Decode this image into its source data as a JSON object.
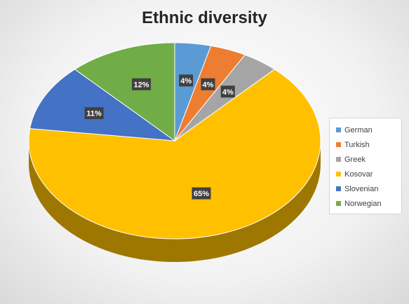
{
  "chart_data": {
    "type": "pie",
    "title": "Ethnic diversity",
    "categories": [
      "German",
      "Turkish",
      "Greek",
      "Kosovar",
      "Slovenian",
      "Norwegian"
    ],
    "values": [
      4,
      4,
      4,
      65,
      11,
      12
    ],
    "labels": [
      "4%",
      "4%",
      "4%",
      "65%",
      "11%",
      "12%"
    ],
    "colors": [
      "#5b9bd5",
      "#ed7d31",
      "#a5a5a5",
      "#ffc000",
      "#4472c4",
      "#70ad47"
    ],
    "legend_position": "right",
    "style": "3d"
  }
}
